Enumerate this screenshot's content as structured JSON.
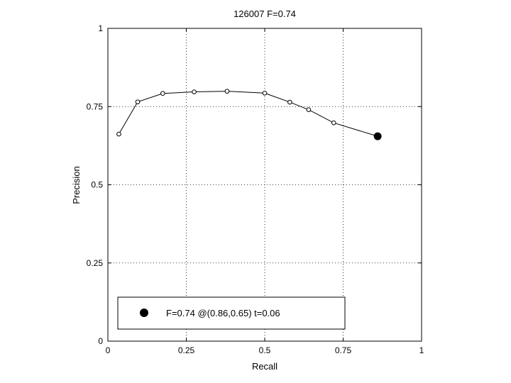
{
  "chart_data": {
    "type": "line",
    "title": "126007 F=0.74",
    "xlabel": "Recall",
    "ylabel": "Precision",
    "xlim": [
      0,
      1
    ],
    "ylim": [
      0,
      1
    ],
    "grid": true,
    "xticks": [
      0,
      0.25,
      0.5,
      0.75,
      1
    ],
    "xtick_labels": [
      "0",
      "0.25",
      "0.5",
      "0.75",
      "1"
    ],
    "yticks": [
      0,
      0.25,
      0.5,
      0.75,
      1
    ],
    "ytick_labels": [
      "0",
      "0.25",
      "0.5",
      "0.75",
      "1"
    ],
    "series": [
      {
        "x": [
          0.035,
          0.095,
          0.175,
          0.275,
          0.38,
          0.5,
          0.58,
          0.64,
          0.72,
          0.86
        ],
        "y": [
          0.662,
          0.765,
          0.792,
          0.797,
          0.799,
          0.793,
          0.764,
          0.74,
          0.698,
          0.655
        ],
        "color": "#000000",
        "marker": "open-circle"
      }
    ],
    "best_point": {
      "x": 0.86,
      "y": 0.65,
      "marker": "filled-circle"
    },
    "legend": {
      "placement": "bottom",
      "text": "F=0.74 @(0.86,0.65) t=0.06"
    }
  }
}
